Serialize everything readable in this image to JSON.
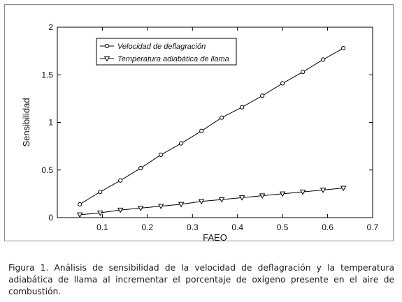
{
  "chart_data": {
    "type": "line",
    "xlabel": "FAEO",
    "ylabel": "Sensibilidad",
    "xlim": [
      0.0,
      0.7
    ],
    "ylim": [
      0,
      2
    ],
    "xticks": [
      "0.1",
      "0.2",
      "0.3",
      "0.4",
      "0.5",
      "0.6",
      "0.7"
    ],
    "yticks": [
      "0",
      "0.5",
      "1",
      "1.5",
      "2"
    ],
    "grid": false,
    "legend_position": "top-left",
    "x": [
      0.05,
      0.095,
      0.14,
      0.185,
      0.23,
      0.275,
      0.32,
      0.365,
      0.41,
      0.455,
      0.5,
      0.545,
      0.59,
      0.635
    ],
    "series": [
      {
        "name": "Velocidad de deflagración",
        "marker": "circle",
        "values": [
          0.14,
          0.27,
          0.39,
          0.52,
          0.66,
          0.78,
          0.91,
          1.05,
          1.16,
          1.28,
          1.41,
          1.53,
          1.66,
          1.78
        ]
      },
      {
        "name": "Temperatura adiabática de llama",
        "marker": "triangle-down",
        "values": [
          0.03,
          0.05,
          0.08,
          0.1,
          0.12,
          0.14,
          0.17,
          0.19,
          0.21,
          0.23,
          0.25,
          0.27,
          0.29,
          0.31
        ]
      }
    ]
  },
  "caption": "Figura 1. Análisis de sensibilidad de la velocidad de deflagración y la temperatura adiabática de llama al incrementar el porcentaje de oxígeno presente en el aire de combustión."
}
